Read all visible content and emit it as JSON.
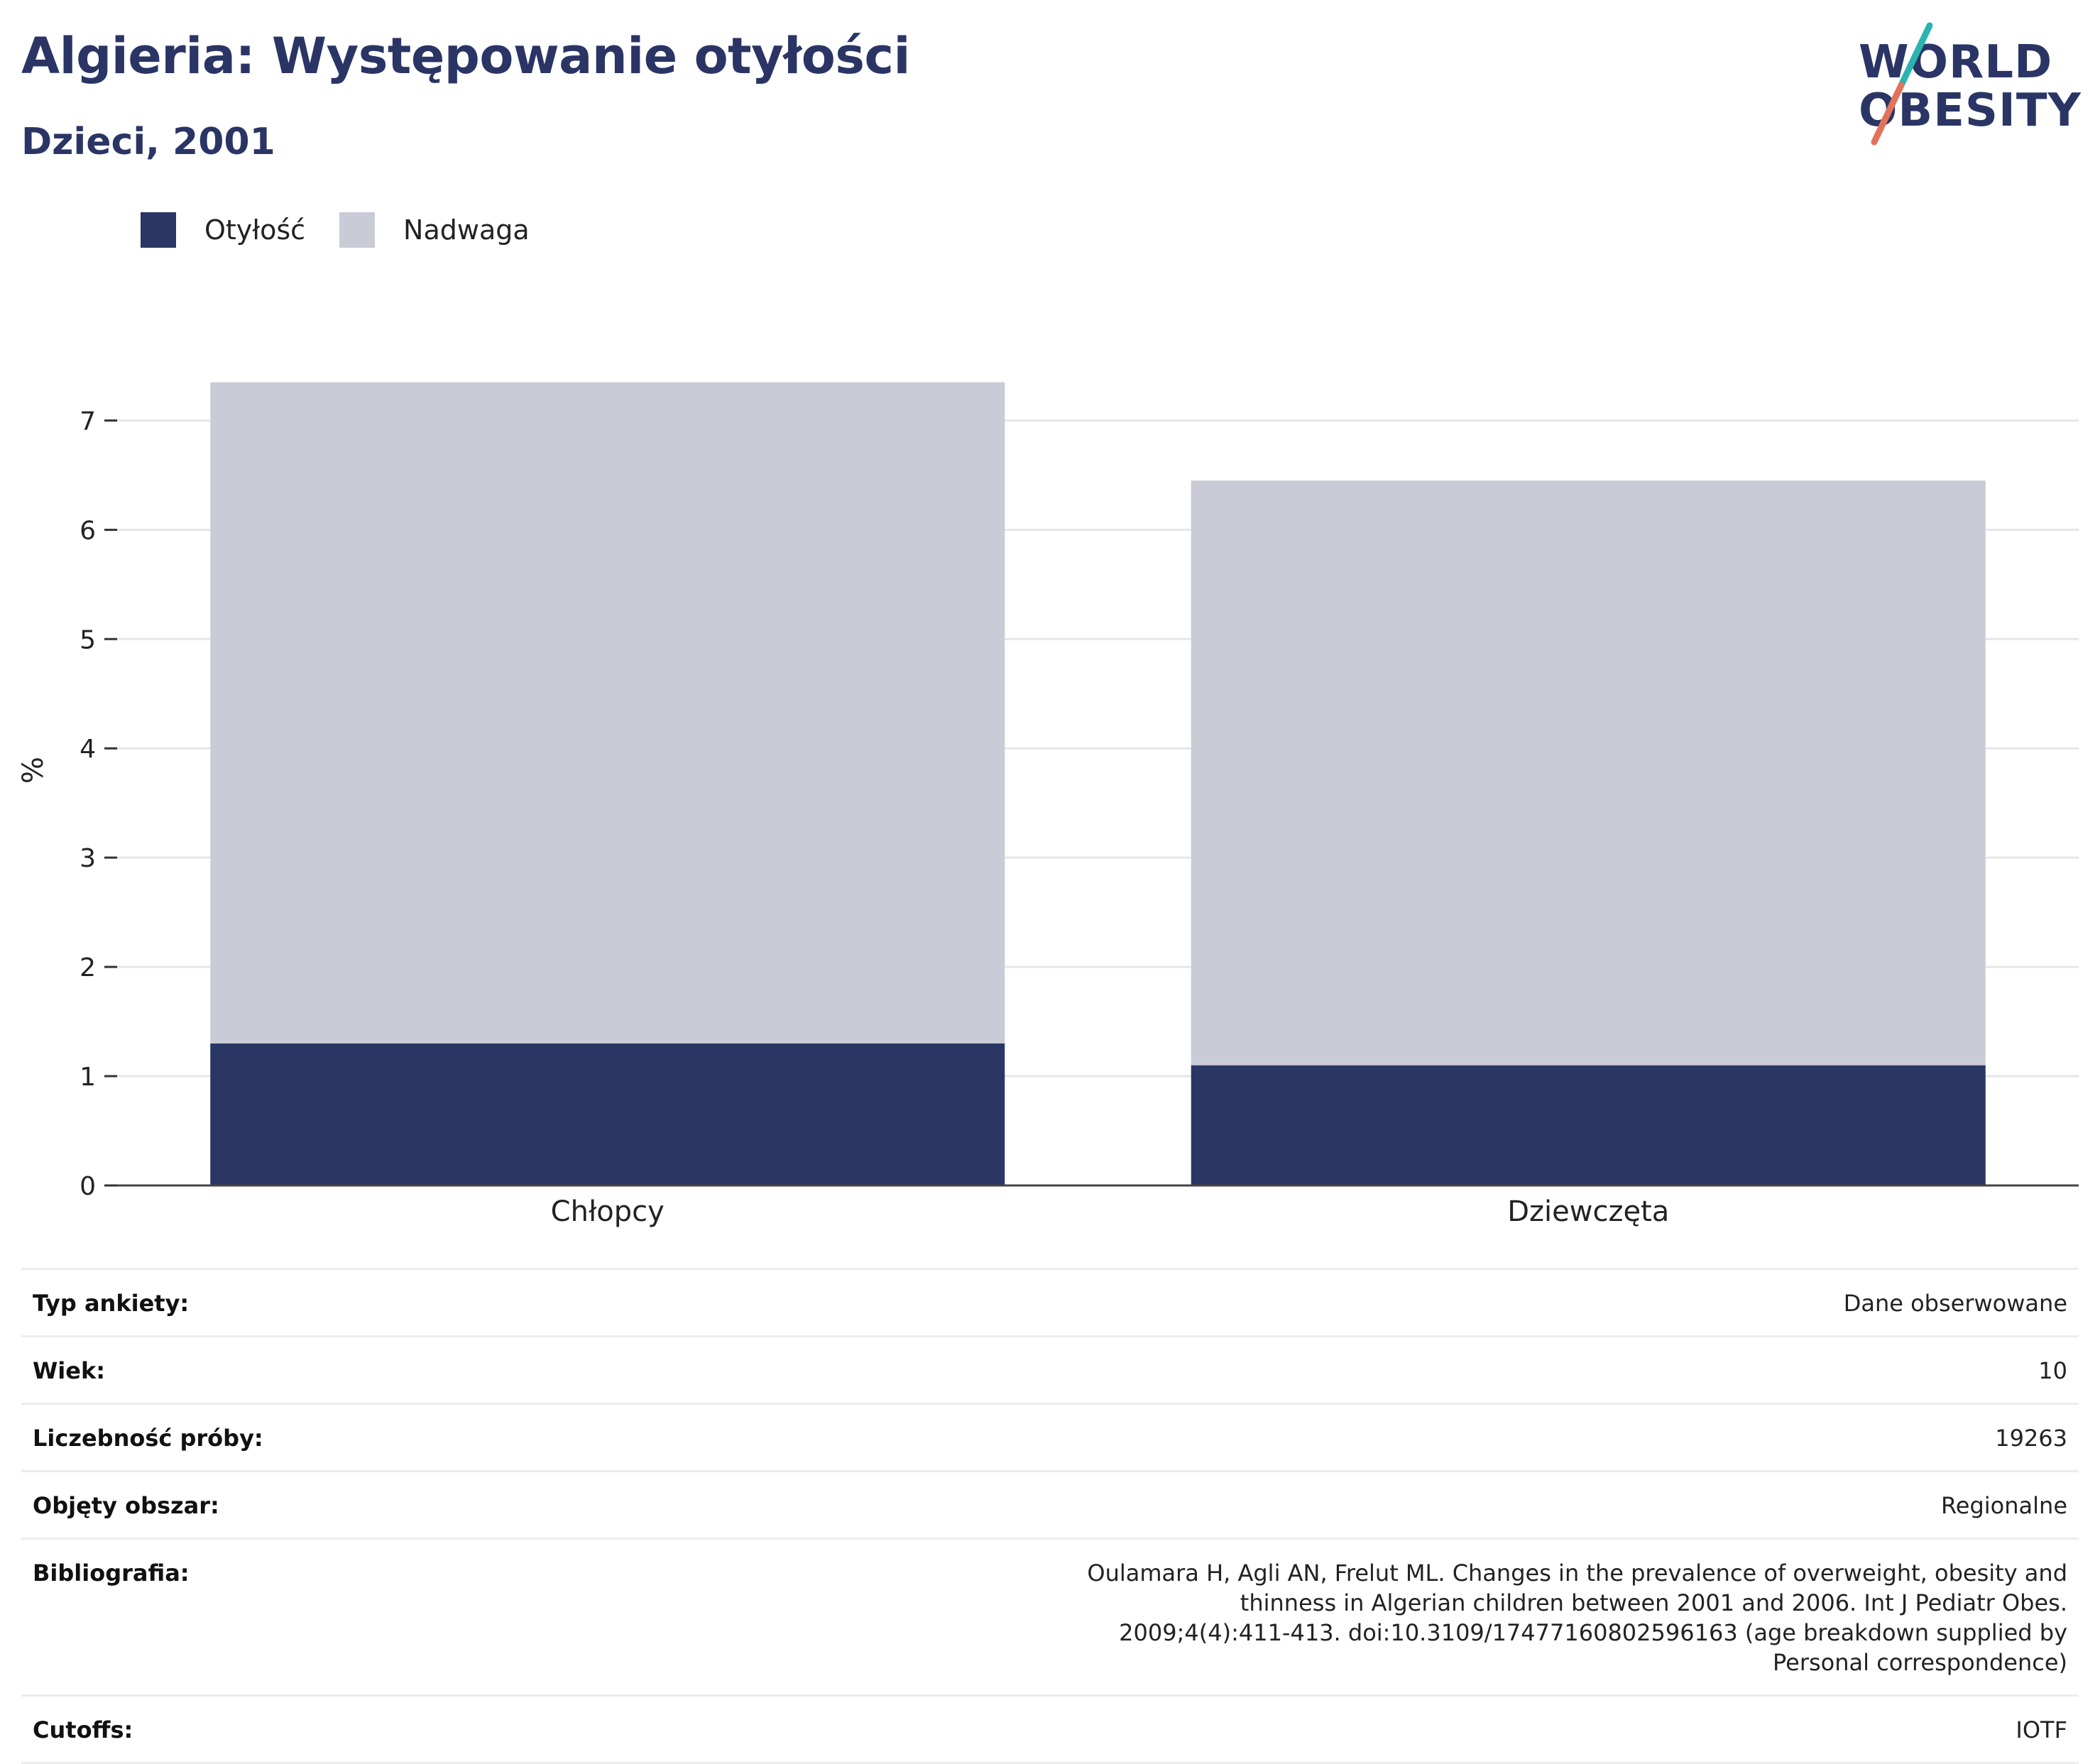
{
  "header": {
    "title": "Algieria: Występowanie otyłości",
    "subtitle": "Dzieci, 2001"
  },
  "logo": {
    "line1": "WORLD",
    "line2": "OBESITY",
    "colors": {
      "text": "#2a3565",
      "slash_top": "#2bb3b0",
      "slash_bottom": "#e2725b"
    }
  },
  "legend": {
    "items": [
      {
        "label": "Otyłość",
        "color": "#2a3663"
      },
      {
        "label": "Nadwaga",
        "color": "#c9cbd7"
      }
    ]
  },
  "chart_data": {
    "type": "bar",
    "stacked": true,
    "categories": [
      "Chłopcy",
      "Dziewczęta"
    ],
    "series": [
      {
        "name": "Otyłość",
        "values": [
          1.3,
          1.1
        ],
        "color": "#2a3663"
      },
      {
        "name": "Nadwaga",
        "values": [
          6.05,
          5.35
        ],
        "color": "#c9cbd7"
      }
    ],
    "ylabel": "%",
    "xlabel": "",
    "ylim": [
      0,
      7.6
    ],
    "yticks": [
      0,
      1,
      2,
      3,
      4,
      5,
      6,
      7
    ],
    "grid": true,
    "legend_position": "top-left"
  },
  "info": {
    "rows": [
      {
        "key": "Typ ankiety:",
        "value": "Dane obserwowane"
      },
      {
        "key": "Wiek:",
        "value": "10"
      },
      {
        "key": "Liczebność próby:",
        "value": "19263"
      },
      {
        "key": "Objęty obszar:",
        "value": "Regionalne"
      },
      {
        "key": "Bibliografia:",
        "value": "Oulamara H, Agli AN, Frelut ML. Changes in the prevalence of overweight, obesity and thinness in Algerian children between 2001 and 2006. Int J Pediatr Obes. 2009;4(4):411-413. doi:10.3109/17477160802596163 (age breakdown supplied by Personal correspondence)"
      },
      {
        "key": "Cutoffs:",
        "value": "IOTF"
      }
    ]
  }
}
